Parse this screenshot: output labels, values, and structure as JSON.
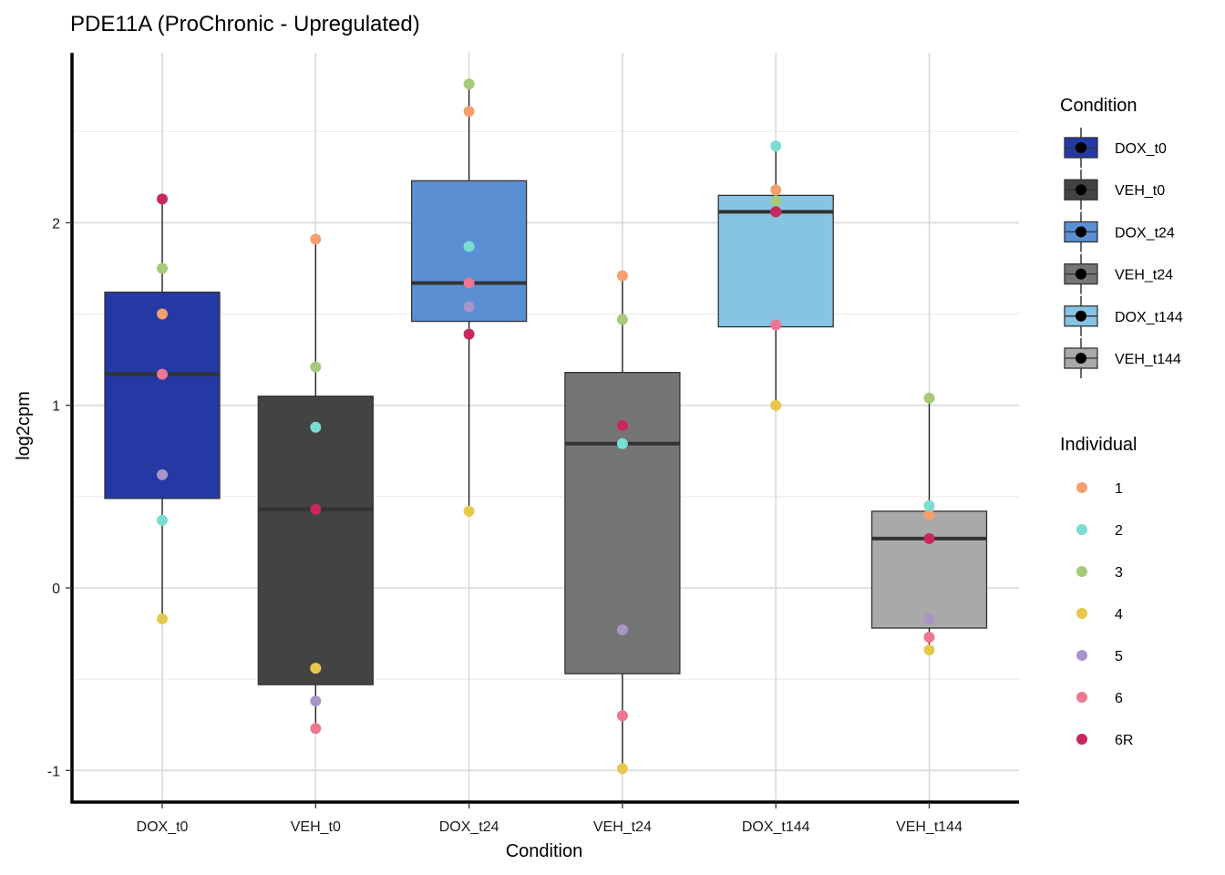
{
  "chart_data": {
    "type": "box",
    "title": "PDE11A (ProChronic - Upregulated)",
    "xlabel": "Condition",
    "ylabel": "log2cpm",
    "ylim": [
      -1.17,
      3.03
    ],
    "yticks": [
      -1,
      0,
      1,
      2
    ],
    "grid": true,
    "categories": [
      "DOX_t0",
      "VEH_t0",
      "DOX_t24",
      "VEH_t24",
      "DOX_t144",
      "VEH_t144"
    ],
    "condition_colors": [
      "#2439A3",
      "#434343",
      "#5B8FD4",
      "#757575",
      "#87C4E4",
      "#A9A9A9"
    ],
    "boxes": [
      {
        "q1": 0.49,
        "median": 1.17,
        "q3": 1.62,
        "whisker_low": -0.17,
        "whisker_high": 2.13
      },
      {
        "q1": -0.53,
        "median": 0.43,
        "q3": 1.05,
        "whisker_low": -0.77,
        "whisker_high": 1.91
      },
      {
        "q1": 1.46,
        "median": 1.67,
        "q3": 2.23,
        "whisker_low": 0.42,
        "whisker_high": 2.76
      },
      {
        "q1": -0.47,
        "median": 0.79,
        "q3": 1.18,
        "whisker_low": -0.99,
        "whisker_high": 1.71
      },
      {
        "q1": 1.43,
        "median": 2.06,
        "q3": 2.15,
        "whisker_low": 1.0,
        "whisker_high": 2.42
      },
      {
        "q1": -0.22,
        "median": 0.27,
        "q3": 0.42,
        "whisker_low": -0.34,
        "whisker_high": 1.04
      }
    ],
    "individuals": [
      "1",
      "2",
      "3",
      "4",
      "5",
      "6",
      "6R"
    ],
    "individual_colors": [
      "#F4A06E",
      "#7ADDD4",
      "#A7C97A",
      "#E6C84E",
      "#A994C9",
      "#EC7791",
      "#C9285A"
    ],
    "points": [
      [
        1.5,
        0.37,
        1.75,
        -0.17,
        0.62,
        1.17,
        2.13
      ],
      [
        1.91,
        0.88,
        1.21,
        -0.44,
        -0.62,
        -0.77,
        0.43
      ],
      [
        2.61,
        1.87,
        2.76,
        0.42,
        1.54,
        1.67,
        1.39
      ],
      [
        1.71,
        0.79,
        1.47,
        -0.99,
        -0.23,
        -0.7,
        0.89
      ],
      [
        2.18,
        2.42,
        2.12,
        1.0,
        2.06,
        1.44,
        2.06
      ],
      [
        0.4,
        0.45,
        1.04,
        -0.34,
        -0.17,
        -0.27,
        0.27
      ]
    ],
    "legend_position": "right",
    "legend_condition_title": "Condition",
    "legend_individual_title": "Individual"
  }
}
